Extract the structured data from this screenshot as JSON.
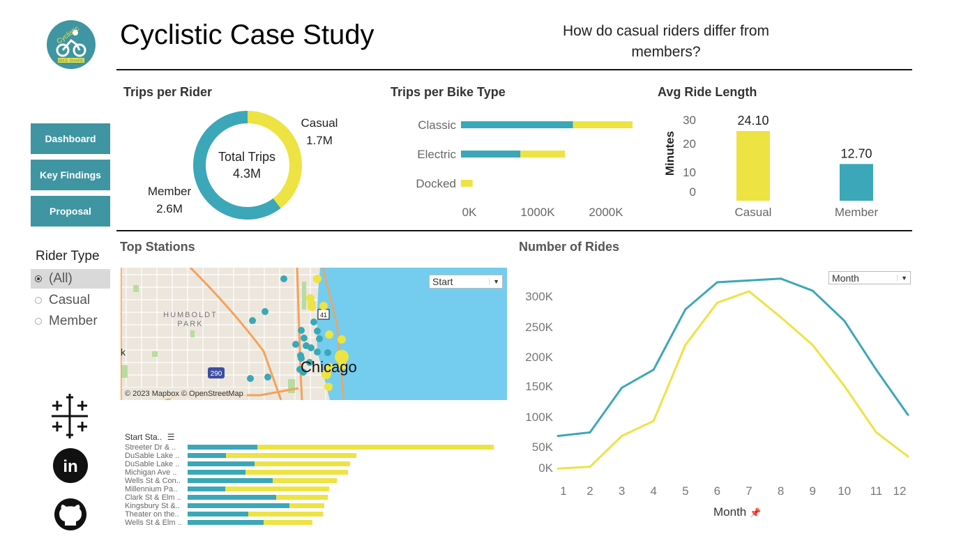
{
  "header": {
    "title": "Cyclistic Case Study",
    "question": "How do casual riders differ from members?",
    "logo_text": [
      "Cyclistic",
      "BIKE-SHARE"
    ]
  },
  "nav": {
    "items": [
      {
        "label": "Dashboard"
      },
      {
        "label": "Key Findings"
      },
      {
        "label": "Proposal"
      }
    ]
  },
  "filter": {
    "title": "Rider Type",
    "options": [
      {
        "label": "(All)",
        "selected": true
      },
      {
        "label": "Casual",
        "selected": false
      },
      {
        "label": "Member",
        "selected": false
      }
    ]
  },
  "social": [
    "tableau-icon",
    "linkedin-icon",
    "github-icon"
  ],
  "colors": {
    "member": "#3ba7b8",
    "casual": "#ede342",
    "nav_button": "#3f95a2"
  },
  "trips_per_rider": {
    "title": "Trips per Rider",
    "center_label": "Total Trips",
    "center_value": "4.3M",
    "casual": {
      "label": "Casual",
      "value_text": "1.7M",
      "value": 1.7
    },
    "member": {
      "label": "Member",
      "value_text": "2.6M",
      "value": 2.6
    }
  },
  "trips_per_bike": {
    "title": "Trips per Bike Type",
    "ticks": [
      "0K",
      "1000K",
      "2000K"
    ],
    "categories": [
      "Classic",
      "Electric",
      "Docked"
    ],
    "member": [
      1640000,
      870000,
      0
    ],
    "casual": [
      870000,
      650000,
      170000
    ]
  },
  "avg_ride": {
    "title": "Avg Ride Length",
    "ylabel": "Minutes",
    "ticks": [
      "30",
      "20",
      "10",
      "0"
    ],
    "categories": [
      "Casual",
      "Member"
    ],
    "values": [
      24.1,
      12.7
    ],
    "labels": [
      "24.10",
      "12.70"
    ]
  },
  "top_stations": {
    "title": "Top Stations",
    "map_dropdown": "Start",
    "map_labels": {
      "park": [
        "HUMBOLDT",
        "PARK"
      ],
      "city": "Chicago",
      "edge": "k",
      "hwy1": "290",
      "hwy2": "41"
    },
    "attribution": "© 2023 Mapbox © OpenStreetMap",
    "column_header": "Start Sta..",
    "rows": [
      {
        "name": "Streeter Dr & ..",
        "member": 100,
        "casual": 339
      },
      {
        "name": "DuSable Lake ..",
        "member": 55,
        "casual": 187
      },
      {
        "name": "DuSable Lake ..",
        "member": 96,
        "casual": 137
      },
      {
        "name": "Michigan Ave ..",
        "member": 83,
        "casual": 147
      },
      {
        "name": "Wells St & Con..",
        "member": 122,
        "casual": 92
      },
      {
        "name": "Millennium Pa..",
        "member": 54,
        "casual": 149
      },
      {
        "name": "Clark St & Elm ..",
        "member": 127,
        "casual": 74
      },
      {
        "name": "Kingsbury St &..",
        "member": 146,
        "casual": 50
      },
      {
        "name": "Theater on the..",
        "member": 87,
        "casual": 107
      },
      {
        "name": "Wells St & Elm ..",
        "member": 109,
        "casual": 70
      }
    ]
  },
  "chart_data": {
    "type": "line",
    "title": "Number of Rides",
    "xlabel": "Month",
    "dropdown": "Month",
    "x": [
      1,
      2,
      3,
      4,
      5,
      6,
      7,
      8,
      9,
      10,
      11,
      12
    ],
    "yticks": [
      "0K",
      "50K",
      "100K",
      "150K",
      "200K",
      "250K",
      "300K"
    ],
    "ylim": [
      0,
      330000
    ],
    "series": [
      {
        "key": "member",
        "values": [
          67000,
          73000,
          147000,
          177000,
          277000,
          322000,
          325000,
          328000,
          308000,
          258000,
          177000,
          102000
        ]
      },
      {
        "key": "casual",
        "values": [
          13000,
          16000,
          67000,
          92000,
          218000,
          288000,
          307000,
          264000,
          218000,
          150000,
          73000,
          33000
        ]
      }
    ]
  }
}
